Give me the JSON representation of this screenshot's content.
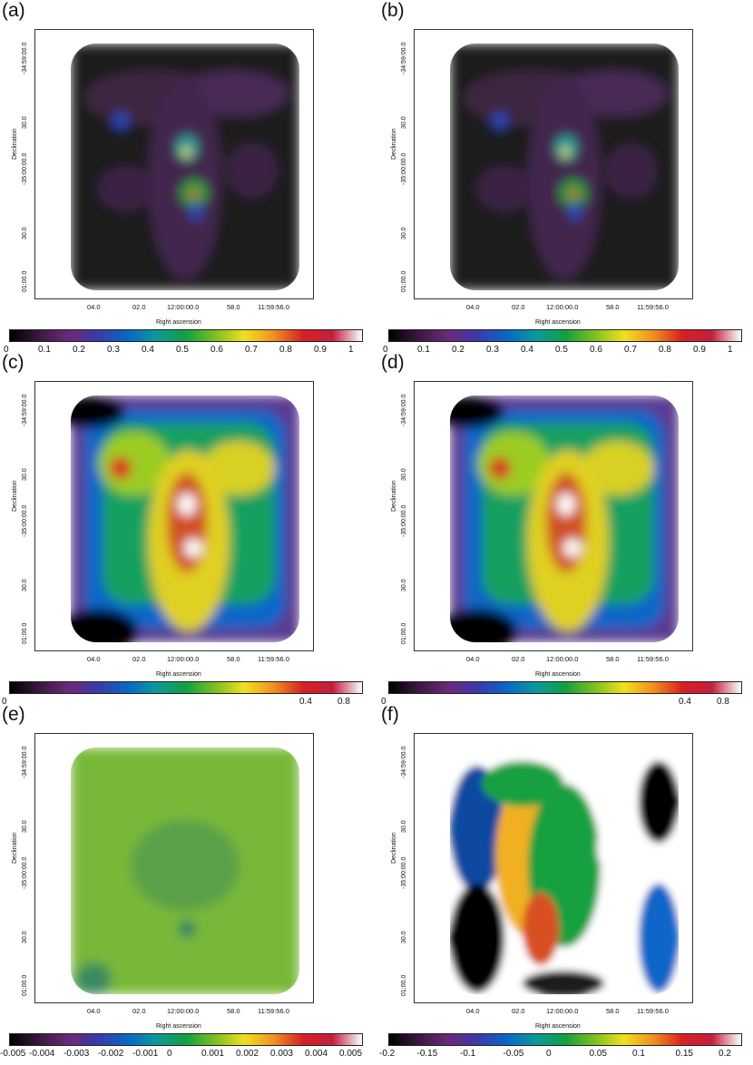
{
  "axes": {
    "ylabel": "Declination",
    "xlabel": "Right ascension",
    "yticks": [
      "-34:59:00.0",
      "30.0",
      "-35:00:00.0",
      "30.0",
      "01:00.0"
    ],
    "xticks": [
      "04.0",
      "02.0",
      "12:00:00.0",
      "58.0",
      "11:59:56.0"
    ]
  },
  "panels": [
    {
      "label": "(a)",
      "scheme": "low",
      "cbar": [
        "0",
        "0.1",
        "0.2",
        "0.3",
        "0.4",
        "0.5",
        "0.6",
        "0.7",
        "0.8",
        "0.9",
        "1"
      ]
    },
    {
      "label": "(b)",
      "scheme": "low",
      "cbar": [
        "0",
        "0.1",
        "0.2",
        "0.3",
        "0.4",
        "0.5",
        "0.6",
        "0.7",
        "0.8",
        "0.9",
        "1"
      ]
    },
    {
      "label": "(c)",
      "scheme": "high",
      "cbar": [
        "0",
        "0.4",
        "0.8"
      ]
    },
    {
      "label": "(d)",
      "scheme": "high",
      "cbar": [
        "0",
        "0.4",
        "0.8"
      ]
    },
    {
      "label": "(e)",
      "scheme": "resid",
      "cbar": [
        "-0.005",
        "-0.004",
        "-0.003",
        "-0.002",
        "-0.001",
        "0",
        "0.001",
        "0.002",
        "0.003",
        "0.004",
        "0.005"
      ]
    },
    {
      "label": "(f)",
      "scheme": "diff",
      "cbar": [
        "-0.2",
        "-0.15",
        "-0.1",
        "-0.05",
        "0",
        "0.05",
        "0.1",
        "0.15",
        "0.2"
      ]
    }
  ],
  "colors": {
    "colorbar": [
      "#000000",
      "#3a1840",
      "#6b2a7a",
      "#3a3aa8",
      "#0a66c8",
      "#0a9a9a",
      "#12a040",
      "#7cc020",
      "#f0e020",
      "#f09020",
      "#d82020",
      "#c02040",
      "#ffffff"
    ]
  }
}
